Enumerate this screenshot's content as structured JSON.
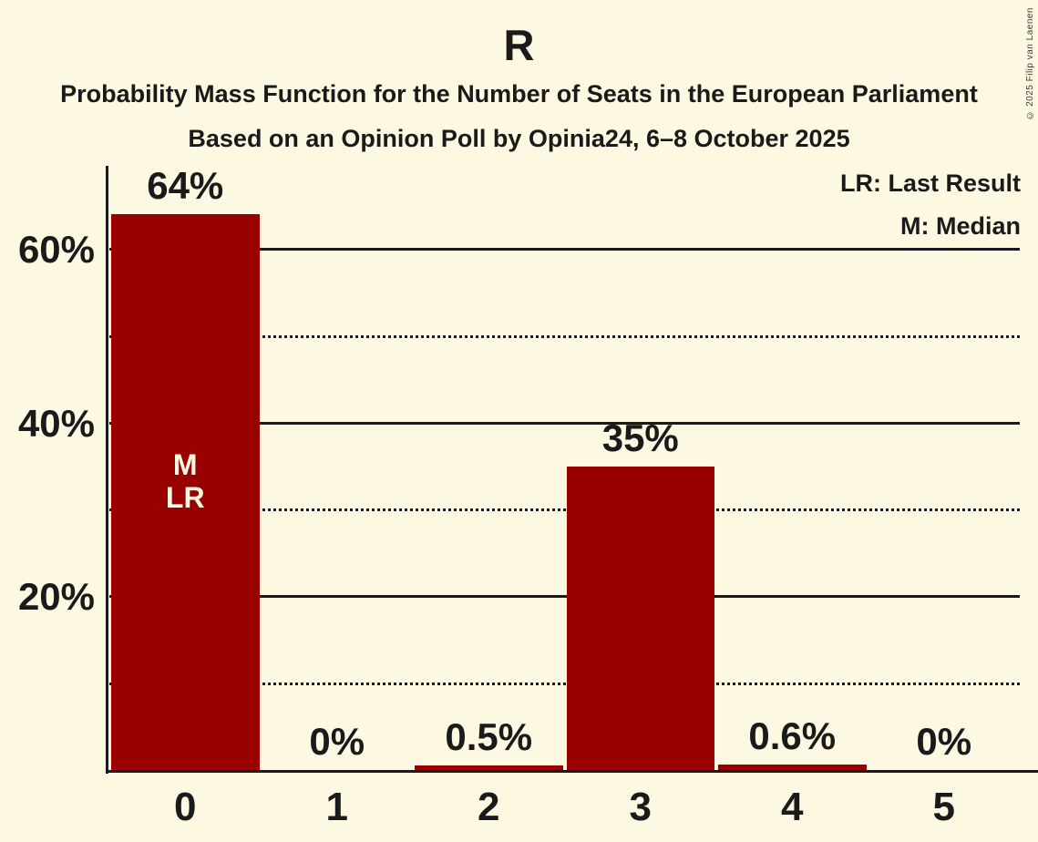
{
  "title": "R",
  "subtitles": [
    "Probability Mass Function for the Number of Seats in the European Parliament",
    "Based on an Opinion Poll by Opinia24, 6–8 October 2025"
  ],
  "copyright": "© 2025 Filip van Laenen",
  "legend": {
    "items": [
      "LR: Last Result",
      "M: Median"
    ],
    "position": "top-right"
  },
  "colors": {
    "background": "#FDF8E2",
    "bar": "#990000",
    "text": "#1A1A1A",
    "bar_annotation_text": "#FDF8E2"
  },
  "chart_data": {
    "type": "bar",
    "title": "R",
    "categories": [
      "0",
      "1",
      "2",
      "3",
      "4",
      "5"
    ],
    "values": [
      64,
      0,
      0.5,
      35,
      0.6,
      0
    ],
    "bar_labels": [
      "64%",
      "0%",
      "0.5%",
      "35%",
      "0.6%",
      "0%"
    ],
    "ylim": [
      0,
      70
    ],
    "ytick_labels": [
      {
        "value": 20,
        "label": "20%"
      },
      {
        "value": 40,
        "label": "40%"
      },
      {
        "value": 60,
        "label": "60%"
      }
    ],
    "solid_gridlines": [
      20,
      40,
      60
    ],
    "dotted_gridlines": [
      10,
      30,
      50
    ],
    "grid": "horizontal",
    "annotations": [
      {
        "category": "0",
        "lines": [
          "M",
          "LR"
        ]
      }
    ],
    "legend_position": "top-right"
  }
}
